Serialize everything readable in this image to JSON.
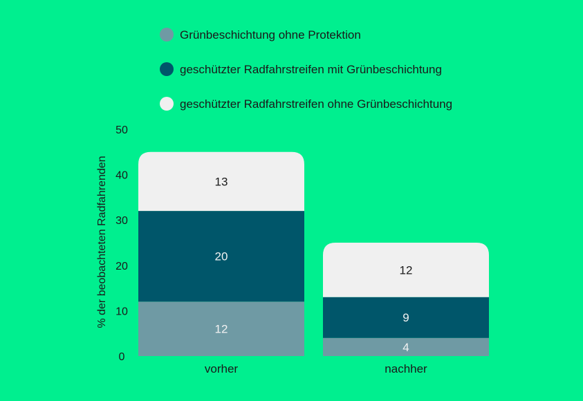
{
  "chart_data": {
    "type": "bar",
    "stacked": true,
    "categories": [
      "vorher",
      "nachher"
    ],
    "series": [
      {
        "name": "Grünbeschichtung ohne Protektion",
        "values": [
          12,
          4
        ],
        "color": "#6f9aa4",
        "label_color": "#f2f2f2"
      },
      {
        "name": "geschützter Radfahrstreifen mit Grünbeschichtung",
        "values": [
          20,
          9
        ],
        "color": "#00566a",
        "label_color": "#f2f2f2"
      },
      {
        "name": "geschützter Radfahrstreifen ohne Grünbeschichtung",
        "values": [
          13,
          12
        ],
        "color": "#f0f0f0",
        "label_color": "#1a1a1a"
      }
    ],
    "ylabel": "% der beobachteten Radfahrenden",
    "ylim": [
      0,
      50
    ],
    "yticks": [
      0,
      10,
      20,
      30,
      40,
      50
    ],
    "grid": false,
    "legend_position": "top"
  },
  "background_color": "#00ef8f"
}
